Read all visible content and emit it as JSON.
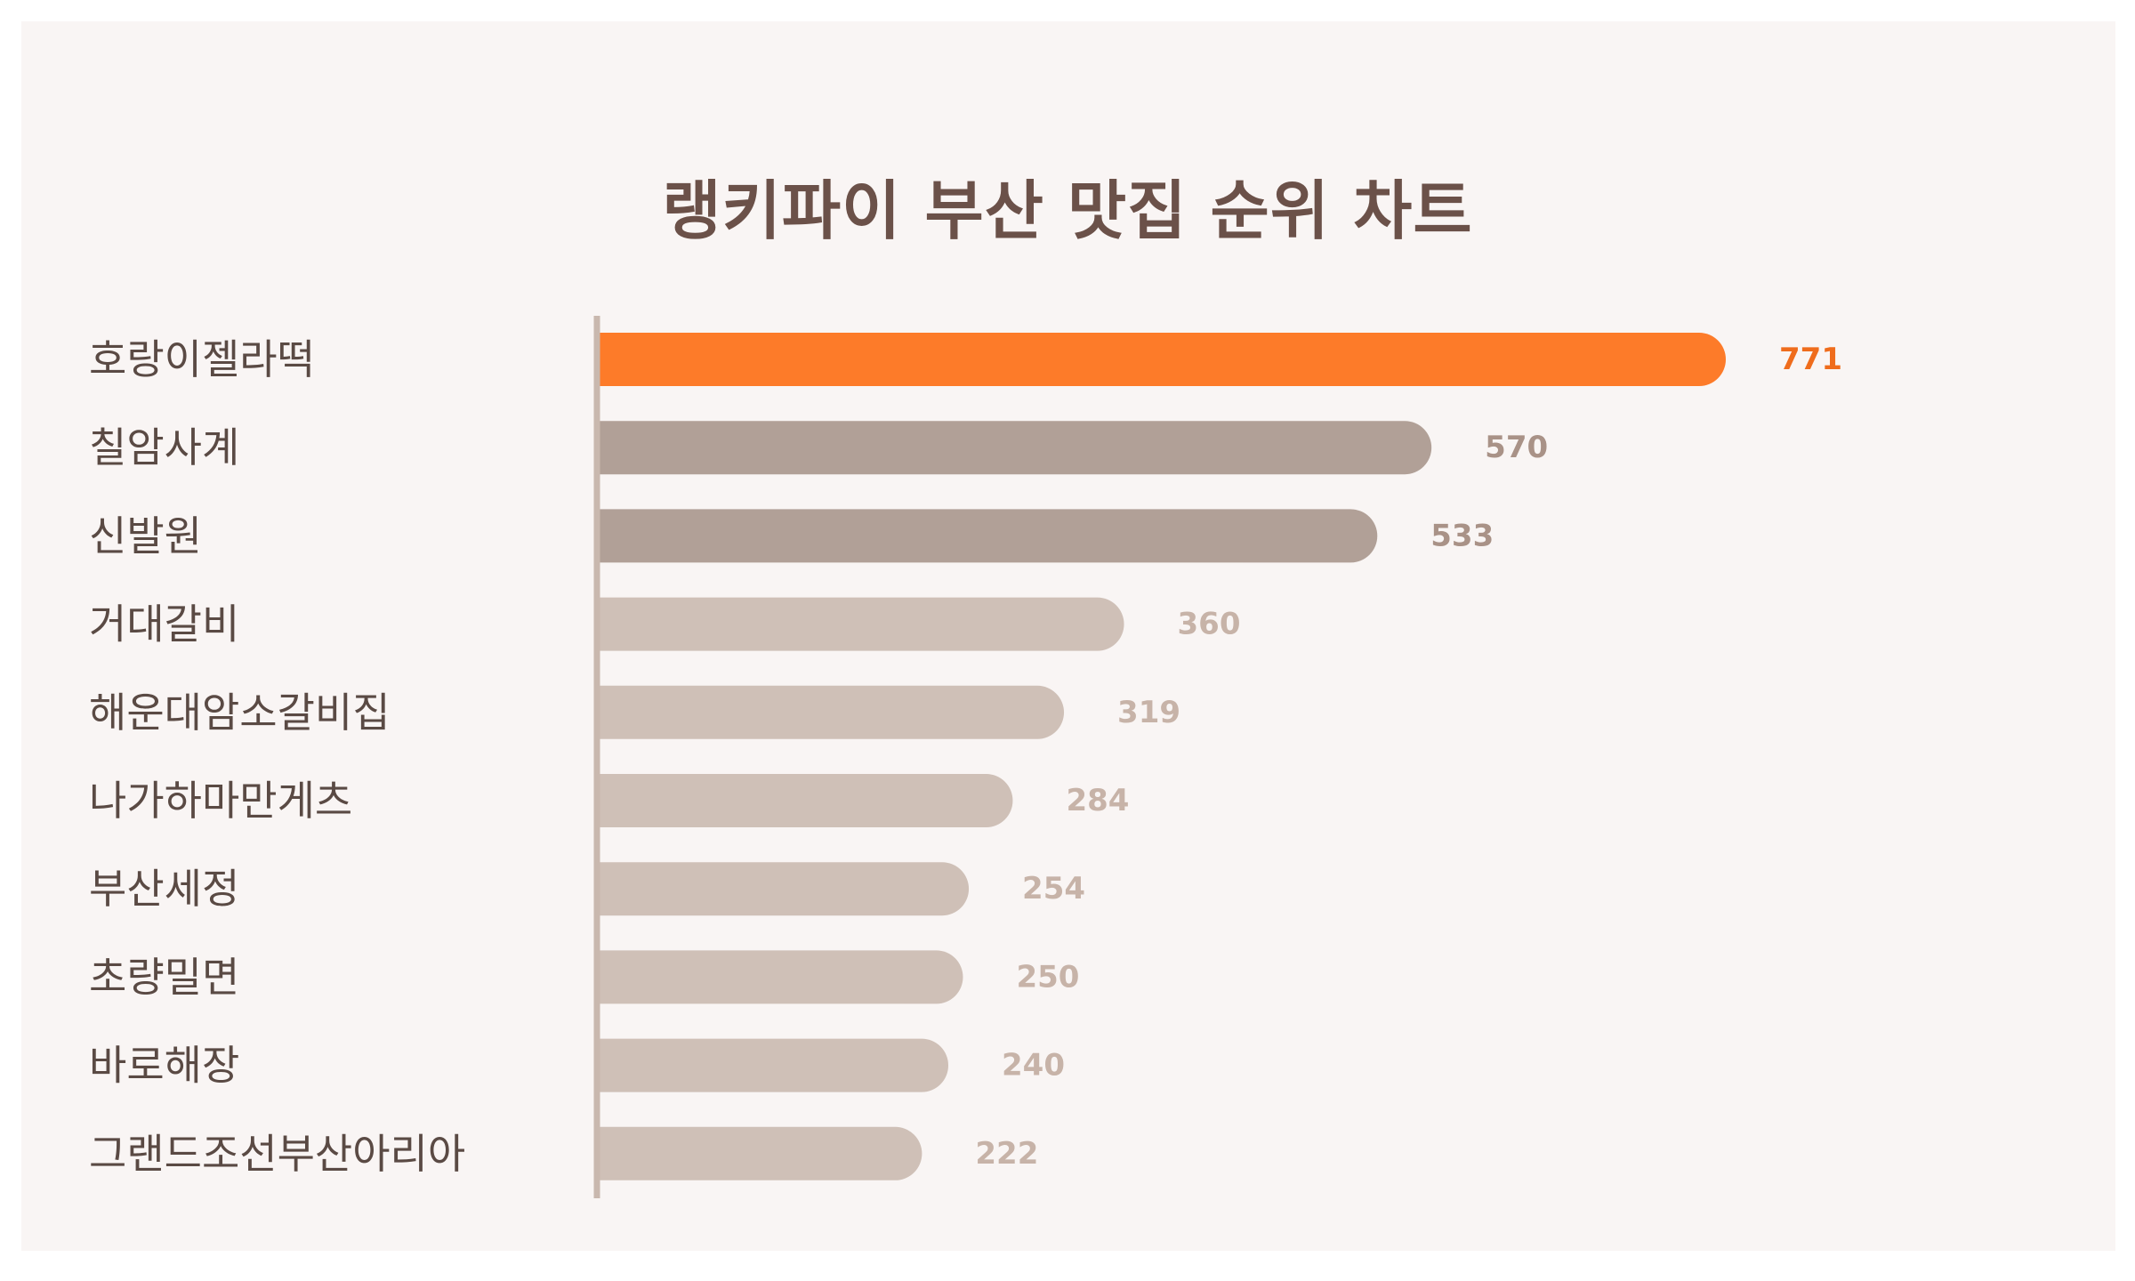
{
  "chart_data": {
    "type": "bar",
    "orientation": "horizontal",
    "title": "랭키파이 부산 맛집 순위 차트",
    "categories": [
      "호랑이젤라떡",
      "칠암사계",
      "신발원",
      "거대갈비",
      "해운대암소갈비집",
      "나가하마만게츠",
      "부산세정",
      "초량밀면",
      "바로해장",
      "그랜드조선부산아리아"
    ],
    "values": [
      771,
      570,
      533,
      360,
      319,
      284,
      254,
      250,
      240,
      222
    ],
    "xlim": [
      0,
      771
    ],
    "grid": false,
    "legend": "none",
    "colors": {
      "rank_1": "#fd7b29",
      "rank_2_3": "#b1a097",
      "rank_rest": "#cfc0b7",
      "label_rank_1": "#ef6c1c",
      "label_rank_2_3": "#a99287",
      "label_rank_rest": "#c7b3a8",
      "axis": "#c9b8ae"
    }
  }
}
